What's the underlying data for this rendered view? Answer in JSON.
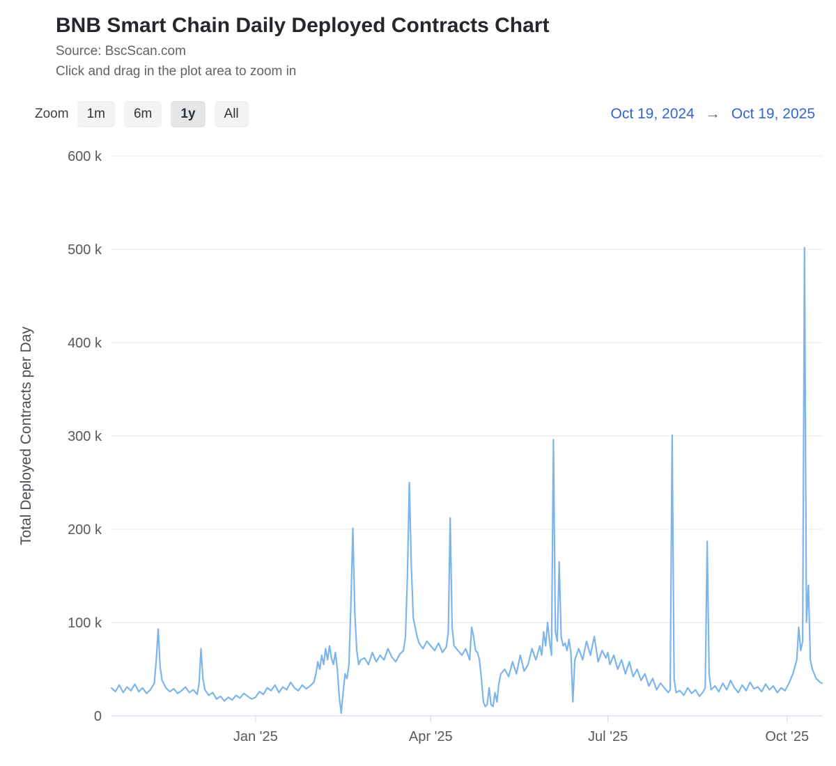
{
  "header": {
    "title": "BNB Smart Chain Daily Deployed Contracts Chart",
    "subtitle_source": "Source: BscScan.com",
    "subtitle_hint": "Click and drag in the plot area to zoom in"
  },
  "toolbar": {
    "zoom_label": "Zoom",
    "buttons": [
      {
        "label": "1m",
        "selected": false
      },
      {
        "label": "6m",
        "selected": false
      },
      {
        "label": "1y",
        "selected": true
      },
      {
        "label": "All",
        "selected": false
      }
    ],
    "range_from": "Oct 19, 2024",
    "range_arrow": "→",
    "range_to": "Oct 19, 2025"
  },
  "colors": {
    "series_line": "#7cb5ec",
    "grid_line": "#e6e6e6",
    "axis_line": "#ccd6eb",
    "link_blue": "#3366cc"
  },
  "chart_data": {
    "type": "line",
    "title": "BNB Smart Chain Daily Deployed Contracts Chart",
    "xlabel": "",
    "ylabel": "Total Deployed Contracts per Day",
    "y_unit": "contracts",
    "ylim": [
      0,
      600000
    ],
    "y_tick_values": [
      0,
      100000,
      200000,
      300000,
      400000,
      500000,
      600000
    ],
    "y_tick_labels": [
      "0",
      "100 k",
      "200 k",
      "300 k",
      "400 k",
      "500 k",
      "600 k"
    ],
    "x_range": {
      "start_date": "2024-10-19",
      "end_date": "2025-10-19",
      "days": 365
    },
    "x_ticks": [
      {
        "label": "Jan '25",
        "day": 74
      },
      {
        "label": "Apr '25",
        "day": 164
      },
      {
        "label": "Jul '25",
        "day": 255
      },
      {
        "label": "Oct '25",
        "day": 347
      }
    ],
    "grid": "horizontal",
    "legend": "none",
    "series": [
      {
        "name": "Total Deployed Contracts per Day",
        "color": "#7cb5ec",
        "points_format": "[day_offset_from_2024-10-19, contracts]",
        "points": [
          [
            0,
            30000
          ],
          [
            2,
            26000
          ],
          [
            4,
            33000
          ],
          [
            6,
            25000
          ],
          [
            8,
            31000
          ],
          [
            10,
            27000
          ],
          [
            12,
            34000
          ],
          [
            14,
            26000
          ],
          [
            16,
            30000
          ],
          [
            18,
            24000
          ],
          [
            20,
            28000
          ],
          [
            22,
            35000
          ],
          [
            23,
            60000
          ],
          [
            24,
            93000
          ],
          [
            25,
            52000
          ],
          [
            26,
            38000
          ],
          [
            28,
            30000
          ],
          [
            30,
            26000
          ],
          [
            32,
            29000
          ],
          [
            34,
            24000
          ],
          [
            36,
            27000
          ],
          [
            38,
            31000
          ],
          [
            40,
            25000
          ],
          [
            42,
            28000
          ],
          [
            44,
            23000
          ],
          [
            45,
            35000
          ],
          [
            46,
            72000
          ],
          [
            47,
            40000
          ],
          [
            48,
            28000
          ],
          [
            50,
            22000
          ],
          [
            52,
            25000
          ],
          [
            54,
            18000
          ],
          [
            56,
            21000
          ],
          [
            58,
            16000
          ],
          [
            60,
            20000
          ],
          [
            62,
            17000
          ],
          [
            64,
            22000
          ],
          [
            66,
            19000
          ],
          [
            68,
            24000
          ],
          [
            70,
            21000
          ],
          [
            72,
            18000
          ],
          [
            74,
            20000
          ],
          [
            76,
            26000
          ],
          [
            78,
            23000
          ],
          [
            80,
            30000
          ],
          [
            82,
            27000
          ],
          [
            84,
            33000
          ],
          [
            86,
            25000
          ],
          [
            88,
            31000
          ],
          [
            90,
            28000
          ],
          [
            92,
            36000
          ],
          [
            94,
            30000
          ],
          [
            96,
            27000
          ],
          [
            98,
            33000
          ],
          [
            100,
            29000
          ],
          [
            102,
            32000
          ],
          [
            104,
            36000
          ],
          [
            105,
            45000
          ],
          [
            106,
            58000
          ],
          [
            107,
            50000
          ],
          [
            108,
            65000
          ],
          [
            109,
            55000
          ],
          [
            110,
            72000
          ],
          [
            111,
            60000
          ],
          [
            112,
            75000
          ],
          [
            113,
            62000
          ],
          [
            114,
            55000
          ],
          [
            115,
            68000
          ],
          [
            116,
            50000
          ],
          [
            117,
            20000
          ],
          [
            118,
            3000
          ],
          [
            119,
            25000
          ],
          [
            120,
            45000
          ],
          [
            121,
            40000
          ],
          [
            122,
            55000
          ],
          [
            123,
            120000
          ],
          [
            124,
            201000
          ],
          [
            125,
            110000
          ],
          [
            126,
            70000
          ],
          [
            127,
            55000
          ],
          [
            128,
            60000
          ],
          [
            130,
            62000
          ],
          [
            132,
            55000
          ],
          [
            134,
            68000
          ],
          [
            136,
            58000
          ],
          [
            138,
            65000
          ],
          [
            140,
            60000
          ],
          [
            142,
            72000
          ],
          [
            144,
            63000
          ],
          [
            146,
            58000
          ],
          [
            148,
            66000
          ],
          [
            150,
            70000
          ],
          [
            151,
            85000
          ],
          [
            152,
            150000
          ],
          [
            153,
            250000
          ],
          [
            154,
            160000
          ],
          [
            155,
            105000
          ],
          [
            156,
            95000
          ],
          [
            157,
            85000
          ],
          [
            158,
            78000
          ],
          [
            160,
            72000
          ],
          [
            162,
            80000
          ],
          [
            164,
            75000
          ],
          [
            166,
            70000
          ],
          [
            168,
            78000
          ],
          [
            170,
            68000
          ],
          [
            172,
            74000
          ],
          [
            173,
            90000
          ],
          [
            174,
            212000
          ],
          [
            175,
            95000
          ],
          [
            176,
            75000
          ],
          [
            178,
            70000
          ],
          [
            180,
            65000
          ],
          [
            182,
            72000
          ],
          [
            184,
            60000
          ],
          [
            185,
            95000
          ],
          [
            186,
            85000
          ],
          [
            187,
            70000
          ],
          [
            188,
            68000
          ],
          [
            189,
            60000
          ],
          [
            190,
            40000
          ],
          [
            191,
            15000
          ],
          [
            192,
            10000
          ],
          [
            193,
            12000
          ],
          [
            194,
            30000
          ],
          [
            195,
            12000
          ],
          [
            196,
            10000
          ],
          [
            197,
            25000
          ],
          [
            198,
            15000
          ],
          [
            199,
            35000
          ],
          [
            200,
            45000
          ],
          [
            202,
            50000
          ],
          [
            204,
            42000
          ],
          [
            206,
            58000
          ],
          [
            208,
            45000
          ],
          [
            210,
            65000
          ],
          [
            212,
            48000
          ],
          [
            214,
            55000
          ],
          [
            216,
            72000
          ],
          [
            218,
            60000
          ],
          [
            220,
            75000
          ],
          [
            221,
            65000
          ],
          [
            222,
            90000
          ],
          [
            223,
            75000
          ],
          [
            224,
            100000
          ],
          [
            225,
            80000
          ],
          [
            226,
            65000
          ],
          [
            227,
            296000
          ],
          [
            228,
            90000
          ],
          [
            229,
            80000
          ],
          [
            230,
            165000
          ],
          [
            231,
            85000
          ],
          [
            232,
            75000
          ],
          [
            233,
            78000
          ],
          [
            234,
            70000
          ],
          [
            235,
            82000
          ],
          [
            236,
            68000
          ],
          [
            237,
            15000
          ],
          [
            238,
            60000
          ],
          [
            240,
            72000
          ],
          [
            242,
            60000
          ],
          [
            244,
            80000
          ],
          [
            246,
            65000
          ],
          [
            248,
            85000
          ],
          [
            250,
            58000
          ],
          [
            252,
            70000
          ],
          [
            254,
            62000
          ],
          [
            255,
            68000
          ],
          [
            256,
            55000
          ],
          [
            258,
            65000
          ],
          [
            260,
            50000
          ],
          [
            262,
            60000
          ],
          [
            264,
            45000
          ],
          [
            266,
            58000
          ],
          [
            268,
            42000
          ],
          [
            270,
            50000
          ],
          [
            272,
            38000
          ],
          [
            274,
            45000
          ],
          [
            276,
            32000
          ],
          [
            278,
            40000
          ],
          [
            280,
            28000
          ],
          [
            282,
            35000
          ],
          [
            284,
            30000
          ],
          [
            286,
            25000
          ],
          [
            287,
            28000
          ],
          [
            288,
            301000
          ],
          [
            289,
            40000
          ],
          [
            290,
            25000
          ],
          [
            292,
            27000
          ],
          [
            294,
            22000
          ],
          [
            296,
            30000
          ],
          [
            298,
            24000
          ],
          [
            300,
            28000
          ],
          [
            302,
            21000
          ],
          [
            304,
            26000
          ],
          [
            305,
            30000
          ],
          [
            306,
            187000
          ],
          [
            307,
            45000
          ],
          [
            308,
            28000
          ],
          [
            310,
            32000
          ],
          [
            312,
            26000
          ],
          [
            314,
            35000
          ],
          [
            316,
            28000
          ],
          [
            318,
            38000
          ],
          [
            320,
            30000
          ],
          [
            322,
            25000
          ],
          [
            324,
            33000
          ],
          [
            326,
            27000
          ],
          [
            328,
            36000
          ],
          [
            330,
            29000
          ],
          [
            332,
            31000
          ],
          [
            334,
            26000
          ],
          [
            336,
            34000
          ],
          [
            338,
            28000
          ],
          [
            340,
            32000
          ],
          [
            342,
            25000
          ],
          [
            344,
            30000
          ],
          [
            346,
            27000
          ],
          [
            348,
            35000
          ],
          [
            350,
            45000
          ],
          [
            352,
            60000
          ],
          [
            353,
            95000
          ],
          [
            354,
            70000
          ],
          [
            355,
            80000
          ],
          [
            356,
            502000
          ],
          [
            357,
            100000
          ],
          [
            358,
            140000
          ],
          [
            359,
            60000
          ],
          [
            360,
            50000
          ],
          [
            361,
            45000
          ],
          [
            362,
            40000
          ],
          [
            363,
            38000
          ],
          [
            364,
            36000
          ],
          [
            365,
            35000
          ]
        ]
      }
    ]
  }
}
